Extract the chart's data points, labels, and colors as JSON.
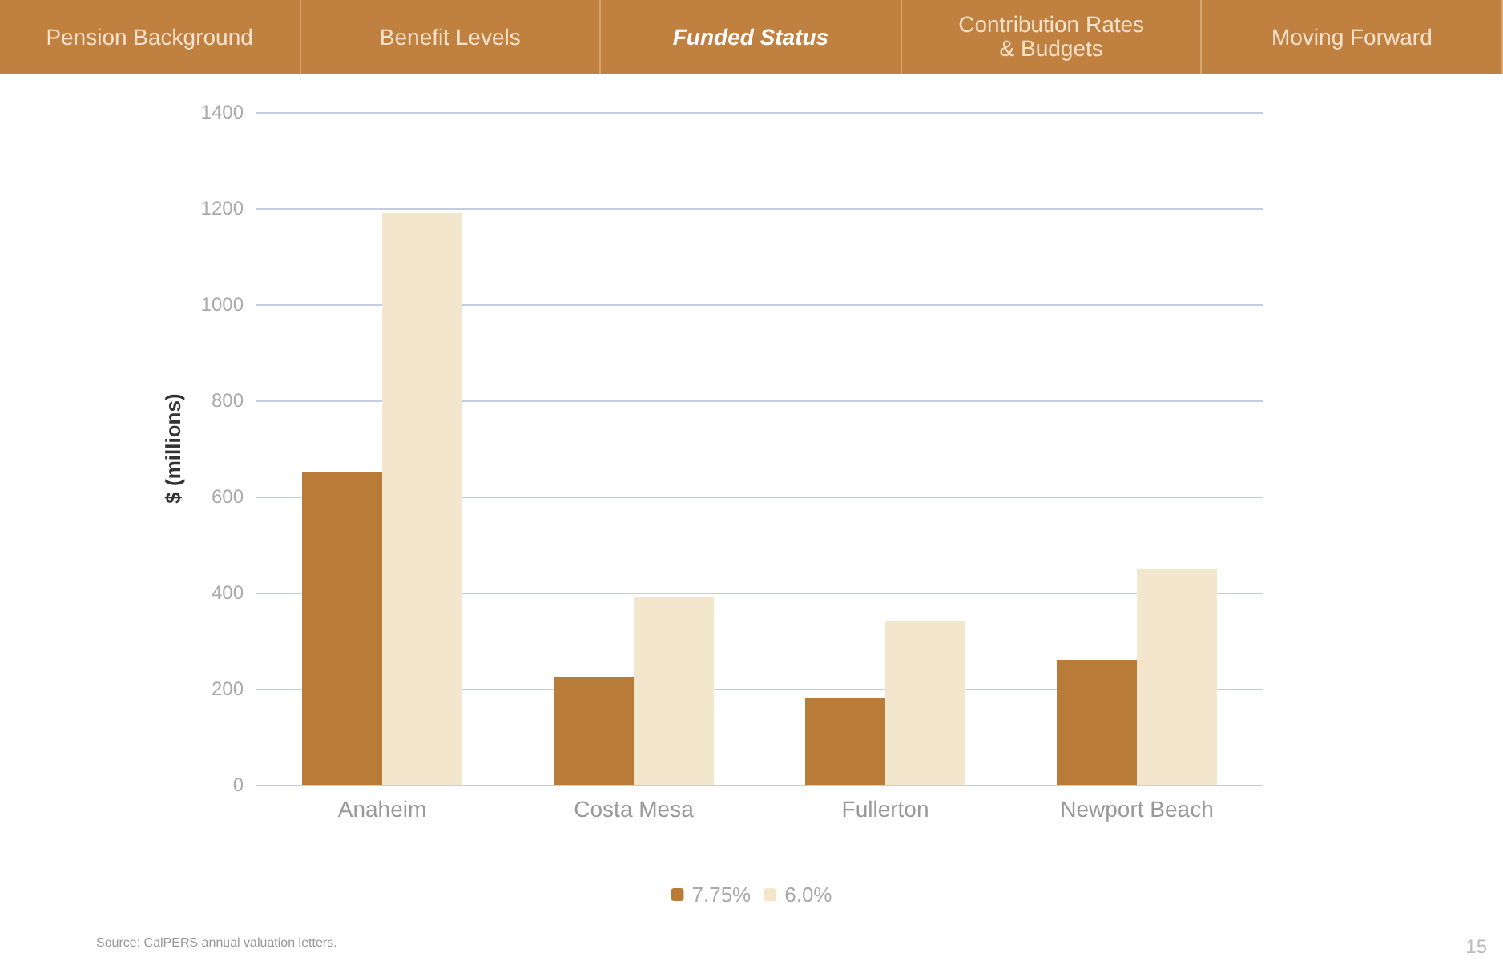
{
  "chart_data": {
    "type": "bar",
    "ylabel": "$ (millions)",
    "categories": [
      "Anaheim",
      "Costa Mesa",
      "Fullerton",
      "Newport Beach"
    ],
    "series": [
      {
        "name": "7.75%",
        "color": "#b97b38",
        "values": [
          650,
          225,
          180,
          260
        ]
      },
      {
        "name": "6.0%",
        "color": "#f2e6cc",
        "values": [
          1190,
          390,
          340,
          450
        ]
      }
    ],
    "ylim": [
      0,
      1400
    ],
    "yticks": [
      0,
      200,
      400,
      600,
      800,
      1000,
      1200,
      1400
    ],
    "grid": "y",
    "legend": "bottom",
    "annotations": [
      "Pension Background",
      "Benefit Levels",
      "Funded Status",
      "Contribution Rates\n& Budgets",
      "Moving Forward",
      "Source: CalPERS annual valuation letters.",
      "15"
    ]
  }
}
